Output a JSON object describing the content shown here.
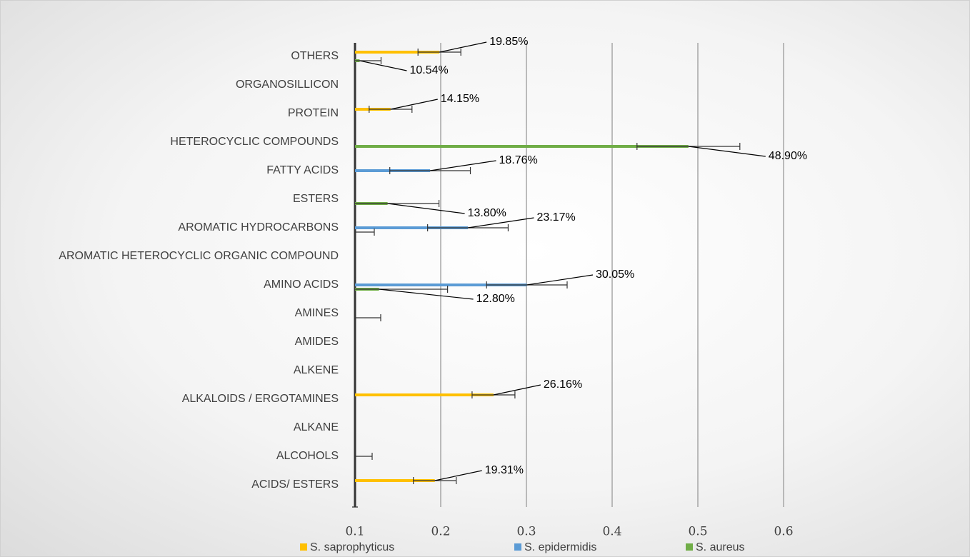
{
  "chart_data": {
    "type": "bar",
    "categories": [
      "ACIDS/ ESTERS",
      "ALCOHOLS",
      "ALKANE",
      "ALKALOIDS / ERGOTAMINES",
      "ALKENE",
      "AMIDES",
      "AMINES",
      "AMINO ACIDS",
      "AROMATIC HETEROCYCLIC ORGANIC COMPOUND",
      "AROMATIC HYDROCARBONS",
      "ESTERS",
      "FATTY ACIDS",
      "HETEROCYCLIC COMPOUNDS",
      "PROTEIN",
      "ORGANOSILLICON",
      "OTHERS"
    ],
    "series": [
      {
        "name": "S. saprophyticus",
        "color": "#ffc000",
        "values": [
          0.1931,
          null,
          null,
          0.2616,
          null,
          null,
          null,
          null,
          null,
          null,
          null,
          null,
          null,
          0.1415,
          null,
          0.1985
        ],
        "errors": [
          0.025,
          null,
          null,
          0.025,
          null,
          null,
          null,
          null,
          null,
          null,
          null,
          null,
          null,
          0.025,
          null,
          0.025
        ],
        "value_labels": [
          "19.31%",
          null,
          null,
          "26.16%",
          null,
          null,
          null,
          null,
          null,
          null,
          null,
          null,
          null,
          "14.15%",
          null,
          "19.85%"
        ]
      },
      {
        "name": "S. epidermidis",
        "color": "#5b9bd5",
        "values": [
          null,
          0.1,
          null,
          null,
          null,
          null,
          null,
          0.3005,
          null,
          0.2317,
          null,
          0.1876,
          null,
          null,
          null,
          null
        ],
        "errors": [
          null,
          0.02,
          null,
          null,
          null,
          null,
          null,
          0.047,
          null,
          0.047,
          null,
          0.047,
          null,
          null,
          null,
          null
        ],
        "value_labels": [
          null,
          null,
          null,
          null,
          null,
          null,
          null,
          "30.05%",
          null,
          "23.17%",
          null,
          "18.76%",
          null,
          null,
          null,
          null
        ]
      },
      {
        "name": "S. aureus",
        "color": "#70ad47",
        "values": [
          null,
          null,
          null,
          null,
          null,
          null,
          0.1,
          0.128,
          null,
          0.1,
          0.138,
          null,
          0.489,
          null,
          null,
          0.1054
        ],
        "errors": [
          null,
          null,
          null,
          null,
          null,
          null,
          0.03,
          0.08,
          null,
          0.0225,
          0.06,
          null,
          0.06,
          null,
          null,
          0.025
        ],
        "value_labels": [
          null,
          null,
          null,
          null,
          null,
          null,
          null,
          "12.80%",
          null,
          null,
          "13.80%",
          null,
          "48.90%",
          null,
          null,
          "10.54%"
        ]
      }
    ],
    "xlim": [
      0.1,
      0.6
    ],
    "xticks": [
      0.1,
      0.2,
      0.3,
      0.4,
      0.5,
      0.6
    ],
    "grid": true,
    "legend": "bottom"
  }
}
